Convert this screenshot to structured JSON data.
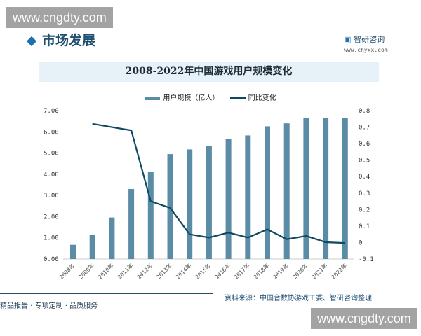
{
  "watermark": "www.cngdty.com",
  "header": {
    "title": "市场发展",
    "logo": "智研咨询",
    "logo_url": "www.chyxx.com"
  },
  "footer": {
    "left": "精品报告 · 专项定制 · 品质服务",
    "source": "资料来源：中国音数协游戏工委、智研咨询整理"
  },
  "chart_data": {
    "type": "bar+line",
    "title": "2008-2022年中国游戏用户规模变化",
    "categories": [
      "2008年",
      "2009年",
      "2010年",
      "2011年",
      "2012年",
      "2013年",
      "2014年",
      "2015年",
      "2016年",
      "2017年",
      "2018年",
      "2019年",
      "2020年",
      "2021年",
      "2022年"
    ],
    "series": [
      {
        "name": "用户规模（亿人）",
        "type": "bar",
        "axis": "left",
        "color": "#5b8ca6",
        "values": [
          0.67,
          1.15,
          1.96,
          3.3,
          4.12,
          4.95,
          5.17,
          5.34,
          5.66,
          5.83,
          6.26,
          6.4,
          6.65,
          6.66,
          6.64
        ]
      },
      {
        "name": "同比变化",
        "type": "line",
        "axis": "right",
        "color": "#0f4a60",
        "values": [
          null,
          0.72,
          0.7,
          0.68,
          0.25,
          0.21,
          0.05,
          0.03,
          0.06,
          0.03,
          0.08,
          0.02,
          0.04,
          0.002,
          -0.003
        ]
      }
    ],
    "y_left": {
      "min": 0,
      "max": 7,
      "ticks": [
        "0.00",
        "1.00",
        "2.00",
        "3.00",
        "4.00",
        "5.00",
        "6.00",
        "7.00"
      ]
    },
    "y_right": {
      "min": -0.1,
      "max": 0.8,
      "ticks": [
        "-0.1",
        "0",
        "0.1",
        "0.2",
        "0.3",
        "0.4",
        "0.5",
        "0.6",
        "0.7",
        "0.8"
      ]
    },
    "legend": "top",
    "grid": false
  }
}
